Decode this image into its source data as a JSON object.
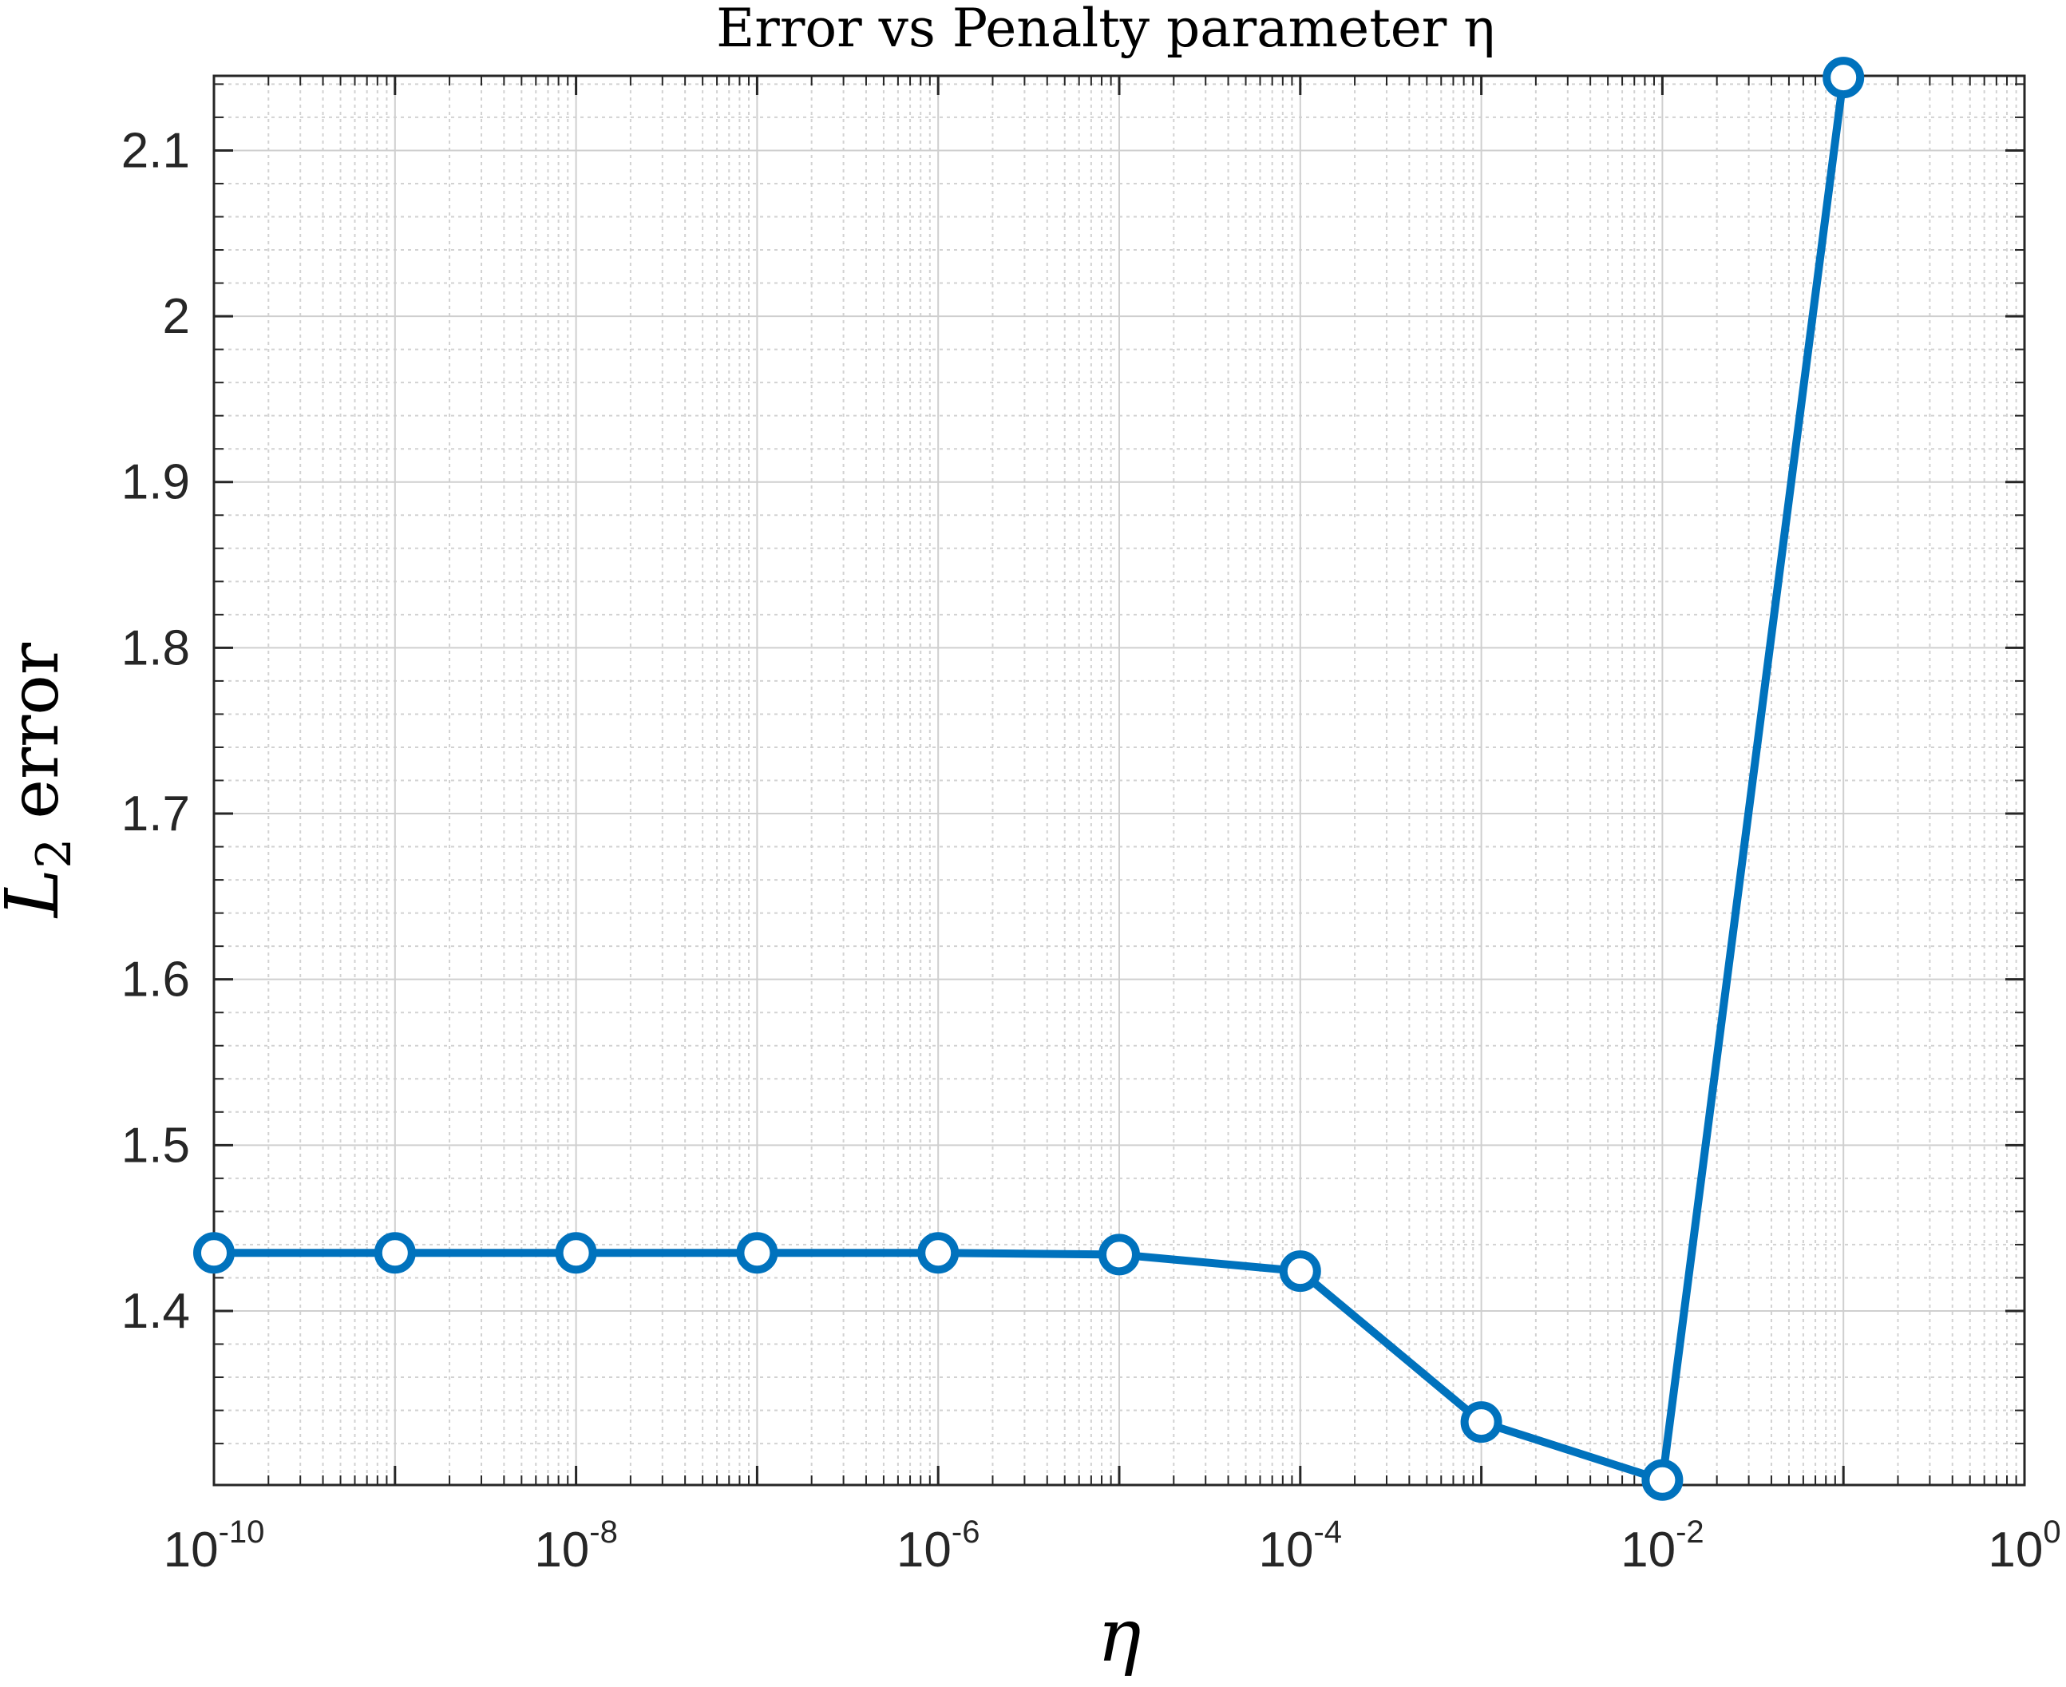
{
  "chart_data": {
    "type": "line",
    "title": "Error vs Penalty parameter η",
    "xlabel": "η",
    "ylabel": "L2 error",
    "ylabel_main": "L",
    "ylabel_sub": "2",
    "ylabel_rest": "error",
    "xscale": "log",
    "xlim": [
      1e-10,
      1
    ],
    "ylim": [
      1.295,
      2.145
    ],
    "grid": true,
    "minor_grid": true,
    "line_color": "#0072BD",
    "marker": "circle",
    "x_ticks": [
      {
        "value": 1e-10,
        "base": "10",
        "exp": "-10"
      },
      {
        "value": 1e-08,
        "base": "10",
        "exp": "-8"
      },
      {
        "value": 1e-06,
        "base": "10",
        "exp": "-6"
      },
      {
        "value": 0.0001,
        "base": "10",
        "exp": "-4"
      },
      {
        "value": 0.01,
        "base": "10",
        "exp": "-2"
      },
      {
        "value": 1,
        "base": "10",
        "exp": "0"
      }
    ],
    "y_ticks": [
      {
        "value": 1.4,
        "label": "1.4"
      },
      {
        "value": 1.5,
        "label": "1.5"
      },
      {
        "value": 1.6,
        "label": "1.6"
      },
      {
        "value": 1.7,
        "label": "1.7"
      },
      {
        "value": 1.8,
        "label": "1.8"
      },
      {
        "value": 1.9,
        "label": "1.9"
      },
      {
        "value": 2.0,
        "label": "2"
      },
      {
        "value": 2.1,
        "label": "2.1"
      }
    ],
    "x": [
      1e-10,
      1e-09,
      1e-08,
      1e-07,
      1e-06,
      1e-05,
      0.0001,
      0.001,
      0.01,
      0.1
    ],
    "series": [
      {
        "values": [
          1.435,
          1.435,
          1.435,
          1.435,
          1.435,
          1.434,
          1.424,
          1.333,
          1.298,
          2.144
        ]
      }
    ]
  }
}
